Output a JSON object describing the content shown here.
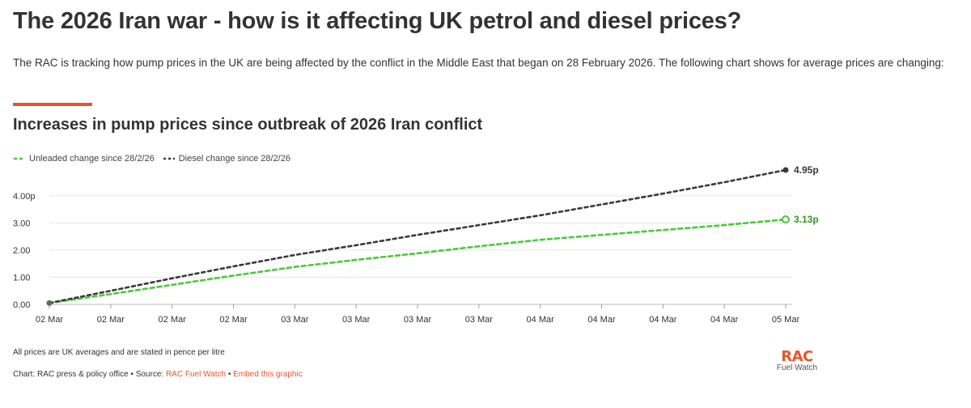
{
  "header": {
    "title": "The 2026 Iran war - how is it affecting UK petrol and diesel prices?",
    "intro": "The RAC is tracking how pump prices in the UK are being affected by the conflict in the Middle East that began on 28 February 2026. The following chart shows for average prices are changing:"
  },
  "colors": {
    "accent": "#e8552d",
    "unleaded": "#49c93a",
    "diesel": "#3a3a3a",
    "unleaded_label": "#2b9a1f",
    "grid": "#e6e6e6"
  },
  "chart_data": {
    "type": "line",
    "title": "Increases in pump prices since outbreak of 2026 Iran conflict",
    "x_tick_labels": [
      "02 Mar",
      "02 Mar",
      "02 Mar",
      "02 Mar",
      "03 Mar",
      "03 Mar",
      "03 Mar",
      "03 Mar",
      "04 Mar",
      "04 Mar",
      "04 Mar",
      "04 Mar",
      "05 Mar"
    ],
    "y_tick_labels": [
      "0.00",
      "1.00",
      "2.00",
      "3.00",
      "4.00p"
    ],
    "ylim": [
      0,
      4.95
    ],
    "y_ticks": [
      0,
      1,
      2,
      3,
      4
    ],
    "x": [
      0,
      1,
      2,
      3,
      4,
      5,
      6,
      7,
      8,
      9,
      10,
      11,
      12
    ],
    "xlim": [
      0,
      12
    ],
    "grid": true,
    "legend_position": "top-left",
    "series": [
      {
        "name": "Unleaded change since 28/2/26",
        "values": [
          0.05,
          0.38,
          0.72,
          1.06,
          1.38,
          1.64,
          1.88,
          2.14,
          2.38,
          2.56,
          2.74,
          2.92,
          3.13
        ],
        "end_label": "3.13p",
        "style": "dashed",
        "marker": "hollow-circle"
      },
      {
        "name": "Diesel change since 28/2/26",
        "values": [
          0.05,
          0.5,
          0.96,
          1.4,
          1.82,
          2.18,
          2.56,
          2.92,
          3.28,
          3.68,
          4.08,
          4.5,
          4.95
        ],
        "end_label": "4.95p",
        "style": "dotted",
        "marker": "filled-circle"
      }
    ]
  },
  "footer": {
    "note": "All prices are UK averages and are stated in pence per litre",
    "credit_prefix": "Chart: RAC press & policy office • Source: ",
    "source_link": "RAC Fuel Watch",
    "separator": " • ",
    "embed_link": "Embed this graphic"
  },
  "logo": {
    "mark": "RAC",
    "sub": "Fuel Watch"
  }
}
